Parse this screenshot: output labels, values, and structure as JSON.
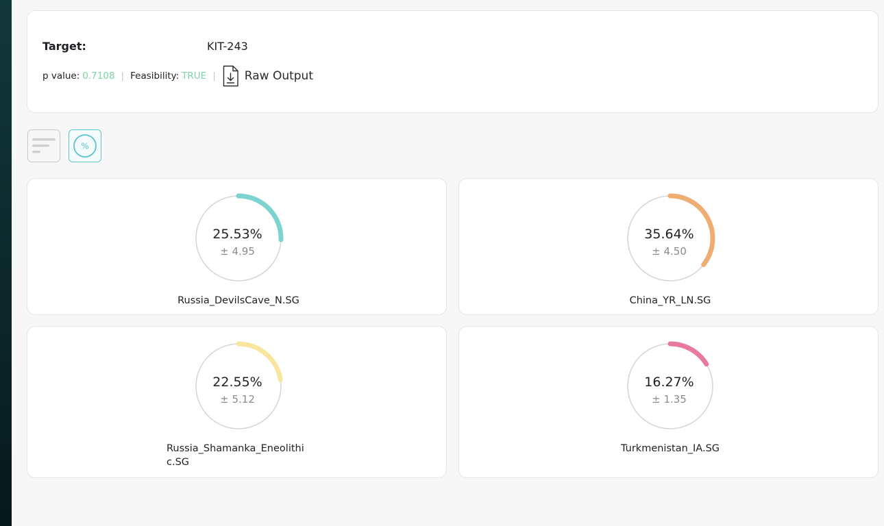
{
  "header": {
    "target_label": "Target:",
    "target_value": "KIT-243",
    "p_value_label": "p value:",
    "p_value": "0.7108",
    "feasibility_label": "Feasibility:",
    "feasibility": "TRUE",
    "separator": "|",
    "raw_output_label": "Raw Output",
    "value_color": "#7fd3a8"
  },
  "toolbar": {
    "sort_icon": "sort-bars-icon",
    "percent_icon": "percent-circle-icon",
    "percent_symbol": "%",
    "active": "percent"
  },
  "components": [
    {
      "name": "Russia_DevilsCave_N.SG",
      "percent_text": "25.53%",
      "error_text": "± 4.95",
      "fraction": 0.2553,
      "color": "#7dd3d0"
    },
    {
      "name": "China_YR_LN.SG",
      "percent_text": "35.64%",
      "error_text": "± 4.50",
      "fraction": 0.3564,
      "color": "#eeae72"
    },
    {
      "name": "Russia_Shamanka_Eneolithic.SG",
      "percent_text": "22.55%",
      "error_text": "± 5.12",
      "fraction": 0.2255,
      "color": "#f8e6a0"
    },
    {
      "name": "Turkmenistan_IA.SG",
      "percent_text": "16.27%",
      "error_text": "± 1.35",
      "fraction": 0.1627,
      "color": "#e87aa2"
    }
  ]
}
